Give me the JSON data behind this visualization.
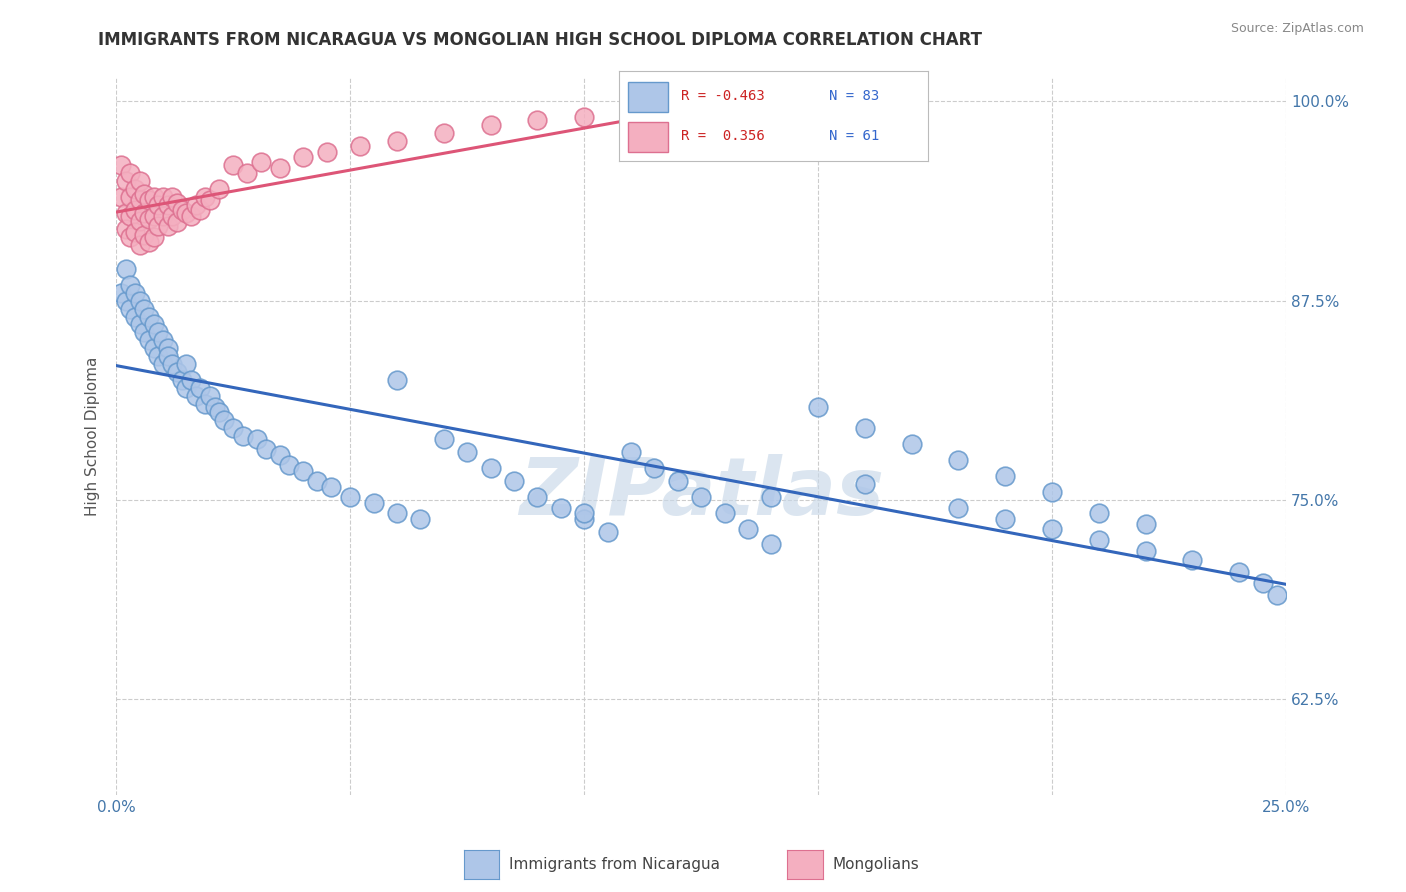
{
  "title": "IMMIGRANTS FROM NICARAGUA VS MONGOLIAN HIGH SCHOOL DIPLOMA CORRELATION CHART",
  "source": "Source: ZipAtlas.com",
  "ylabel": "High School Diploma",
  "xlim": [
    0.0,
    0.25
  ],
  "ylim": [
    0.565,
    1.015
  ],
  "xticks": [
    0.0,
    0.05,
    0.1,
    0.15,
    0.2,
    0.25
  ],
  "xticklabels": [
    "0.0%",
    "",
    "",
    "",
    "",
    "25.0%"
  ],
  "ytick_positions": [
    0.625,
    0.75,
    0.875,
    1.0
  ],
  "ytick_labels": [
    "62.5%",
    "75.0%",
    "87.5%",
    "100.0%"
  ],
  "legend_r1": "R = -0.463",
  "legend_n1": "N = 83",
  "legend_r2": "R =  0.356",
  "legend_n2": "N = 61",
  "blue_color": "#aec6e8",
  "blue_edge": "#6699cc",
  "pink_color": "#f4afc0",
  "pink_edge": "#dd7090",
  "blue_line_color": "#3366bb",
  "pink_line_color": "#dd5577",
  "grid_color": "#cccccc",
  "watermark_color": "#c8d8e8",
  "blue_scatter_x": [
    0.001,
    0.002,
    0.002,
    0.003,
    0.003,
    0.004,
    0.004,
    0.005,
    0.005,
    0.006,
    0.006,
    0.007,
    0.007,
    0.008,
    0.008,
    0.009,
    0.009,
    0.01,
    0.01,
    0.011,
    0.011,
    0.012,
    0.013,
    0.014,
    0.015,
    0.015,
    0.016,
    0.017,
    0.018,
    0.019,
    0.02,
    0.021,
    0.022,
    0.023,
    0.025,
    0.027,
    0.03,
    0.032,
    0.035,
    0.037,
    0.04,
    0.043,
    0.046,
    0.05,
    0.055,
    0.06,
    0.065,
    0.07,
    0.075,
    0.08,
    0.085,
    0.09,
    0.095,
    0.1,
    0.105,
    0.11,
    0.115,
    0.12,
    0.125,
    0.13,
    0.135,
    0.14,
    0.15,
    0.16,
    0.17,
    0.18,
    0.19,
    0.2,
    0.21,
    0.22,
    0.06,
    0.1,
    0.14,
    0.16,
    0.18,
    0.19,
    0.2,
    0.21,
    0.22,
    0.23,
    0.24,
    0.245,
    0.248
  ],
  "blue_scatter_y": [
    0.88,
    0.895,
    0.875,
    0.885,
    0.87,
    0.88,
    0.865,
    0.875,
    0.86,
    0.87,
    0.855,
    0.865,
    0.85,
    0.86,
    0.845,
    0.855,
    0.84,
    0.85,
    0.835,
    0.845,
    0.84,
    0.835,
    0.83,
    0.825,
    0.835,
    0.82,
    0.825,
    0.815,
    0.82,
    0.81,
    0.815,
    0.808,
    0.805,
    0.8,
    0.795,
    0.79,
    0.788,
    0.782,
    0.778,
    0.772,
    0.768,
    0.762,
    0.758,
    0.752,
    0.748,
    0.742,
    0.738,
    0.788,
    0.78,
    0.77,
    0.762,
    0.752,
    0.745,
    0.738,
    0.73,
    0.78,
    0.77,
    0.762,
    0.752,
    0.742,
    0.732,
    0.722,
    0.808,
    0.795,
    0.785,
    0.775,
    0.765,
    0.755,
    0.742,
    0.735,
    0.825,
    0.742,
    0.752,
    0.76,
    0.745,
    0.738,
    0.732,
    0.725,
    0.718,
    0.712,
    0.705,
    0.698,
    0.69
  ],
  "pink_scatter_x": [
    0.001,
    0.001,
    0.002,
    0.002,
    0.002,
    0.003,
    0.003,
    0.003,
    0.003,
    0.004,
    0.004,
    0.004,
    0.005,
    0.005,
    0.005,
    0.005,
    0.006,
    0.006,
    0.006,
    0.007,
    0.007,
    0.007,
    0.008,
    0.008,
    0.008,
    0.009,
    0.009,
    0.01,
    0.01,
    0.011,
    0.011,
    0.012,
    0.012,
    0.013,
    0.013,
    0.014,
    0.015,
    0.016,
    0.017,
    0.018,
    0.019,
    0.02,
    0.022,
    0.025,
    0.028,
    0.031,
    0.035,
    0.04,
    0.045,
    0.052,
    0.06,
    0.07,
    0.08,
    0.09,
    0.1,
    0.11,
    0.12,
    0.13,
    0.14,
    0.155,
    0.17
  ],
  "pink_scatter_y": [
    0.96,
    0.94,
    0.95,
    0.93,
    0.92,
    0.955,
    0.94,
    0.928,
    0.915,
    0.945,
    0.932,
    0.918,
    0.95,
    0.938,
    0.925,
    0.91,
    0.942,
    0.93,
    0.916,
    0.938,
    0.926,
    0.912,
    0.94,
    0.928,
    0.915,
    0.935,
    0.922,
    0.94,
    0.928,
    0.935,
    0.922,
    0.94,
    0.928,
    0.936,
    0.924,
    0.932,
    0.93,
    0.928,
    0.935,
    0.932,
    0.94,
    0.938,
    0.945,
    0.96,
    0.955,
    0.962,
    0.958,
    0.965,
    0.968,
    0.972,
    0.975,
    0.98,
    0.985,
    0.988,
    0.99,
    0.995,
    0.998,
    1.0,
    0.998,
    0.997,
    0.996
  ]
}
